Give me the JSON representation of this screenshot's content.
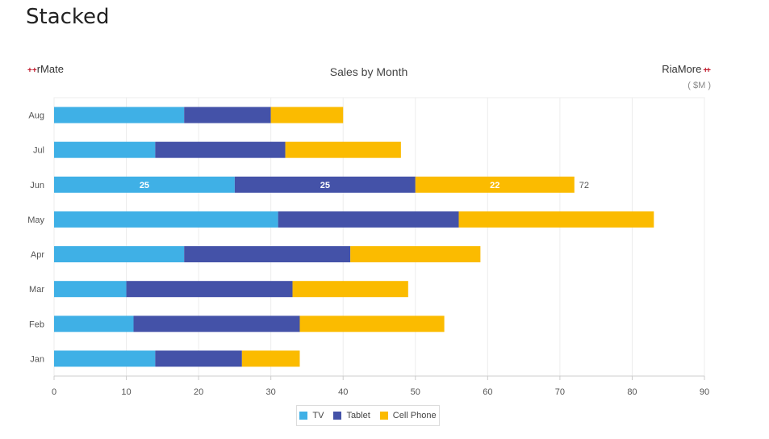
{
  "page": {
    "title": "Stacked"
  },
  "brand": {
    "left": "rMate",
    "right": "RiaMore",
    "plus": "+"
  },
  "chart_data": {
    "type": "bar",
    "orientation": "horizontal",
    "stacked": true,
    "title": "Sales by Month",
    "unit_label": "( $M )",
    "categories": [
      "Aug",
      "Jul",
      "Jun",
      "May",
      "Apr",
      "Mar",
      "Feb",
      "Jan"
    ],
    "series": [
      {
        "name": "TV",
        "color": "#3fb0e6",
        "values": [
          18,
          14,
          25,
          31,
          18,
          10,
          11,
          14
        ]
      },
      {
        "name": "Tablet",
        "color": "#4452a8",
        "values": [
          12,
          18,
          25,
          25,
          23,
          23,
          23,
          12
        ]
      },
      {
        "name": "Cell Phone",
        "color": "#fbbb00",
        "values": [
          10,
          16,
          22,
          27,
          18,
          16,
          20,
          8
        ]
      }
    ],
    "xlim": [
      0,
      90
    ],
    "xticks": [
      "0",
      "10",
      "20",
      "30",
      "40",
      "50",
      "60",
      "70",
      "80",
      "90"
    ],
    "grid": true,
    "legend_position": "bottom",
    "annotations": {
      "category": "Jun",
      "segment_labels": [
        "25",
        "25",
        "22"
      ],
      "total_label": "72"
    }
  }
}
